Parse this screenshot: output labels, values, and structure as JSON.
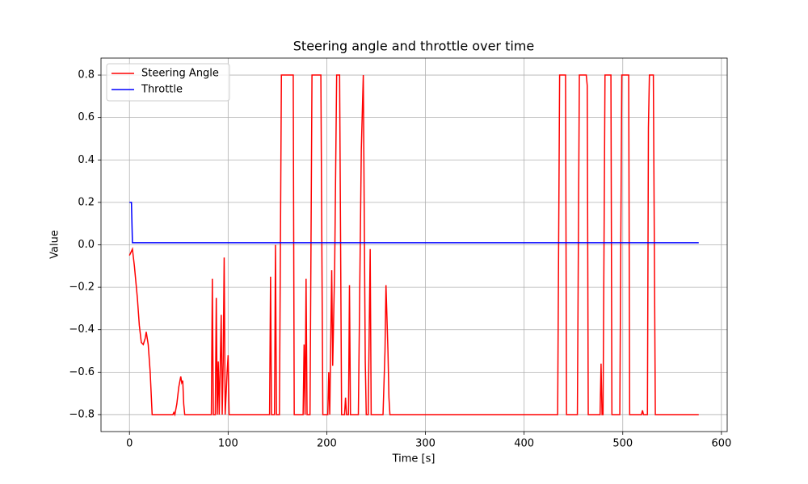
{
  "chart_data": {
    "type": "line",
    "title": "Steering angle and throttle over time",
    "xlabel": "Time [s]",
    "ylabel": "Value",
    "xlim": [
      -28.85,
      605.85
    ],
    "ylim": [
      -0.88,
      0.88
    ],
    "xticks": [
      0,
      100,
      200,
      300,
      400,
      500,
      600
    ],
    "yticks": [
      {
        "value": -0.8,
        "label": "−0.8"
      },
      {
        "value": -0.6,
        "label": "−0.6"
      },
      {
        "value": -0.4,
        "label": "−0.4"
      },
      {
        "value": -0.2,
        "label": "−0.2"
      },
      {
        "value": 0,
        "label": "0.0"
      },
      0.2,
      0.4,
      0.6,
      0.8
    ],
    "grid": true,
    "legend": "upper-left",
    "series": [
      {
        "name": "Steering Angle",
        "color": "#ff0000",
        "x": [
          0,
          2,
          3,
          5,
          8,
          10,
          12,
          14,
          16,
          17,
          19,
          21,
          23,
          44,
          45,
          46,
          48,
          50,
          52,
          53,
          54,
          55,
          56,
          83,
          84,
          85,
          87,
          88,
          89,
          90,
          91,
          93,
          94,
          95,
          96,
          97,
          99,
          100,
          101,
          142,
          143,
          144,
          147,
          148,
          149,
          152,
          154,
          166,
          167,
          176,
          177,
          178,
          179,
          180,
          183,
          185,
          194,
          196,
          201,
          202,
          203,
          205,
          206,
          208,
          210,
          213,
          215,
          218,
          219,
          220,
          222,
          223,
          224,
          232,
          235,
          237,
          239,
          240,
          242,
          244,
          245,
          257,
          259,
          260,
          262,
          263,
          264,
          434,
          436,
          442,
          443,
          454,
          456,
          463,
          464,
          465,
          477,
          478,
          479,
          480,
          482,
          488,
          489,
          497,
          499,
          506,
          507,
          519,
          520,
          521,
          525,
          526,
          527,
          531,
          533,
          577
        ],
        "values": [
          -0.05,
          -0.03,
          -0.02,
          -0.1,
          -0.25,
          -0.38,
          -0.46,
          -0.47,
          -0.44,
          -0.41,
          -0.47,
          -0.6,
          -0.8,
          -0.8,
          -0.79,
          -0.8,
          -0.75,
          -0.67,
          -0.62,
          -0.65,
          -0.64,
          -0.75,
          -0.8,
          -0.8,
          -0.16,
          -0.8,
          -0.8,
          -0.25,
          -0.8,
          -0.55,
          -0.8,
          -0.33,
          -0.8,
          -0.55,
          -0.06,
          -0.8,
          -0.6,
          -0.52,
          -0.8,
          -0.8,
          -0.15,
          -0.8,
          -0.8,
          0,
          -0.8,
          -0.8,
          0.8,
          0.8,
          -0.8,
          -0.8,
          -0.47,
          -0.8,
          -0.16,
          -0.8,
          -0.8,
          0.8,
          0.8,
          -0.8,
          -0.8,
          -0.6,
          -0.8,
          -0.12,
          -0.57,
          -0.1,
          0.8,
          0.8,
          -0.8,
          -0.8,
          -0.72,
          -0.8,
          -0.8,
          -0.19,
          -0.8,
          -0.8,
          0.45,
          0.8,
          -0.55,
          -0.8,
          -0.8,
          -0.02,
          -0.8,
          -0.8,
          -0.5,
          -0.19,
          -0.5,
          -0.72,
          -0.8,
          -0.8,
          0.8,
          0.8,
          -0.8,
          -0.8,
          0.8,
          0.8,
          0.75,
          -0.8,
          -0.8,
          -0.56,
          -0.8,
          -0.8,
          0.8,
          0.8,
          -0.8,
          -0.8,
          0.8,
          0.8,
          -0.8,
          -0.8,
          -0.78,
          -0.8,
          -0.8,
          0.55,
          0.8,
          0.8,
          -0.8,
          -0.8
        ]
      },
      {
        "name": "Throttle",
        "color": "#0000ff",
        "x": [
          0,
          2,
          3,
          577
        ],
        "values": [
          0.2,
          0.2,
          0.01,
          0.01
        ]
      }
    ]
  }
}
